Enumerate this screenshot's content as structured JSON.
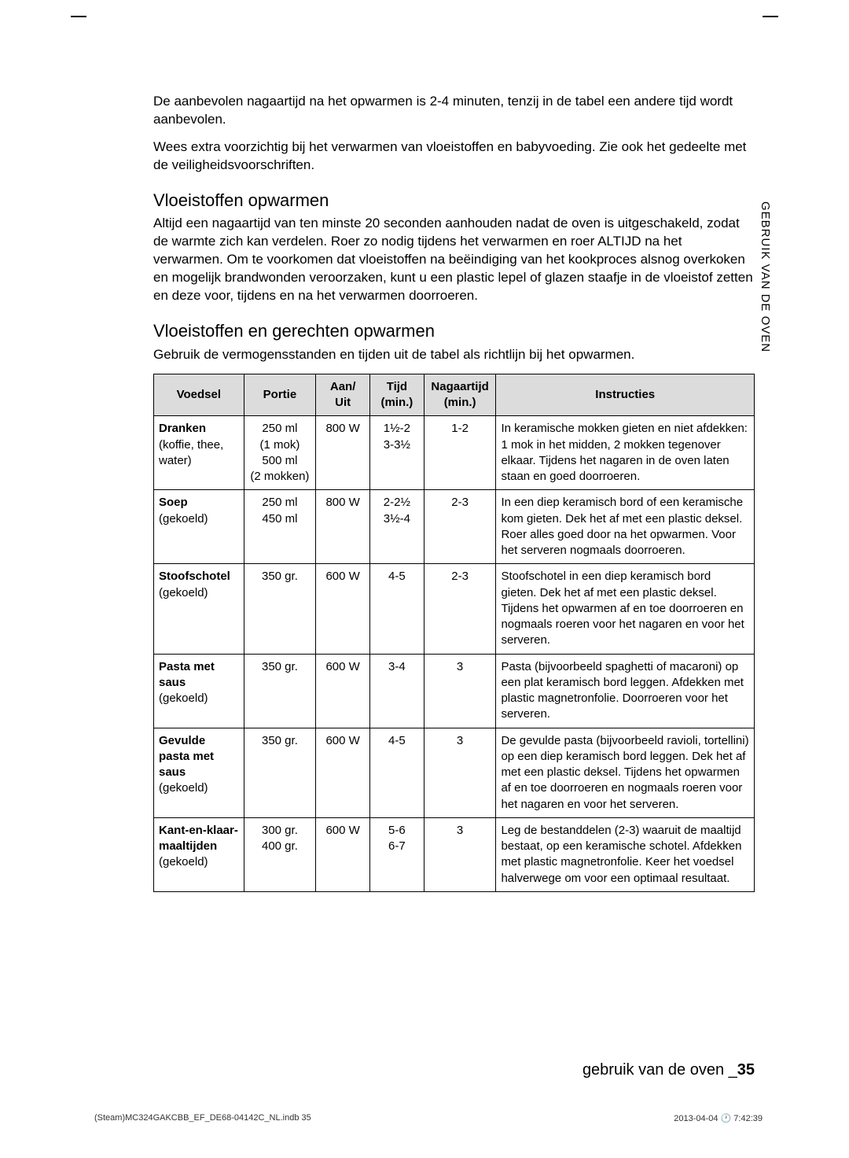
{
  "intro": {
    "p1": "De aanbevolen nagaartijd na het opwarmen is 2-4 minuten, tenzij in de tabel een andere tijd wordt aanbevolen.",
    "p2": "Wees extra voorzichtig bij het verwarmen van vloeistoffen en babyvoeding. Zie ook het gedeelte met de veiligheidsvoorschriften."
  },
  "section1": {
    "title": "Vloeistoffen opwarmen",
    "body": "Altijd een nagaartijd van ten minste 20 seconden aanhouden nadat de oven is uitgeschakeld, zodat de warmte zich kan verdelen. Roer zo nodig tijdens het verwarmen en roer ALTIJD na het verwarmen. Om te voorkomen dat vloeistoffen na beëindiging van het kookproces alsnog overkoken en mogelijk brandwonden veroorzaken, kunt u een plastic lepel of glazen staafje in de vloeistof zetten en deze voor, tijdens en na het verwarmen doorroeren."
  },
  "section2": {
    "title": "Vloeistoffen en gerechten opwarmen",
    "intro": "Gebruik de vermogensstanden en tijden uit de tabel als richtlijn bij het opwarmen."
  },
  "table": {
    "columns": [
      "Voedsel",
      "Portie",
      "Aan/\nUit",
      "Tijd\n(min.)",
      "Nagaartijd\n(min.)",
      "Instructies"
    ],
    "col_widths": [
      "15%",
      "12%",
      "9%",
      "9%",
      "12%",
      "43%"
    ],
    "header_bg": "#dcdcdc",
    "border_color": "#000000",
    "font_size": 15,
    "rows": [
      {
        "voedsel_bold": "Dranken",
        "voedsel_rest": "(koffie, thee, water)",
        "portie": "250 ml\n(1 mok)\n500 ml\n(2 mokken)",
        "aan": "800 W",
        "tijd": "1½-2\n3-3½",
        "nagaar": "1-2",
        "instr": "In keramische mokken gieten en niet afdekken: 1 mok in het midden, 2 mokken tegenover elkaar. Tijdens het nagaren in de oven laten staan en goed doorroeren."
      },
      {
        "voedsel_bold": "Soep",
        "voedsel_rest": "(gekoeld)",
        "portie": "250 ml\n450 ml",
        "aan": "800 W",
        "tijd": "2-2½\n3½-4",
        "nagaar": "2-3",
        "instr": "In een diep keramisch bord of een keramische kom gieten. Dek het af met een plastic deksel. Roer alles goed door na het opwarmen. Voor het serveren nogmaals doorroeren."
      },
      {
        "voedsel_bold": "Stoofschotel",
        "voedsel_rest": "(gekoeld)",
        "portie": "350 gr.",
        "aan": "600 W",
        "tijd": "4-5",
        "nagaar": "2-3",
        "instr": "Stoofschotel in een diep keramisch bord gieten. Dek het af met een plastic deksel. Tijdens het opwarmen af en toe doorroeren en nogmaals roeren voor het nagaren en voor het serveren."
      },
      {
        "voedsel_bold": "Pasta met saus",
        "voedsel_rest": "(gekoeld)",
        "portie": "350 gr.",
        "aan": "600 W",
        "tijd": "3-4",
        "nagaar": "3",
        "instr": "Pasta (bijvoorbeeld spaghetti of macaroni) op een plat keramisch bord leggen. Afdekken met plastic magnetronfolie. Doorroeren voor het serveren."
      },
      {
        "voedsel_bold": "Gevulde pasta met saus",
        "voedsel_rest": "(gekoeld)",
        "portie": "350 gr.",
        "aan": "600 W",
        "tijd": "4-5",
        "nagaar": "3",
        "instr": "De gevulde pasta (bijvoorbeeld ravioli, tortellini) op een diep keramisch bord leggen. Dek het af met een plastic deksel. Tijdens het opwarmen af en toe doorroeren en nogmaals roeren voor het nagaren en voor het serveren."
      },
      {
        "voedsel_bold": "Kant-en-klaar-maaltijden",
        "voedsel_rest": "(gekoeld)",
        "portie": "300 gr.\n400 gr.",
        "aan": "600 W",
        "tijd": "5-6\n6-7",
        "nagaar": "3",
        "instr": "Leg de bestanddelen (2-3) waaruit de maaltijd bestaat, op een keramische schotel. Afdekken met plastic magnetronfolie. Keer het voedsel halverwege om voor een optimaal resultaat."
      }
    ]
  },
  "sidetab": "GEBRUIK VAN DE OVEN",
  "footer": {
    "text": "gebruik van de oven _",
    "page": "35"
  },
  "printfooter": {
    "left": "(Steam)MC324GAKCBB_EF_DE68-04142C_NL.indb   35",
    "right": "2013-04-04   🕐 7:42:39"
  }
}
